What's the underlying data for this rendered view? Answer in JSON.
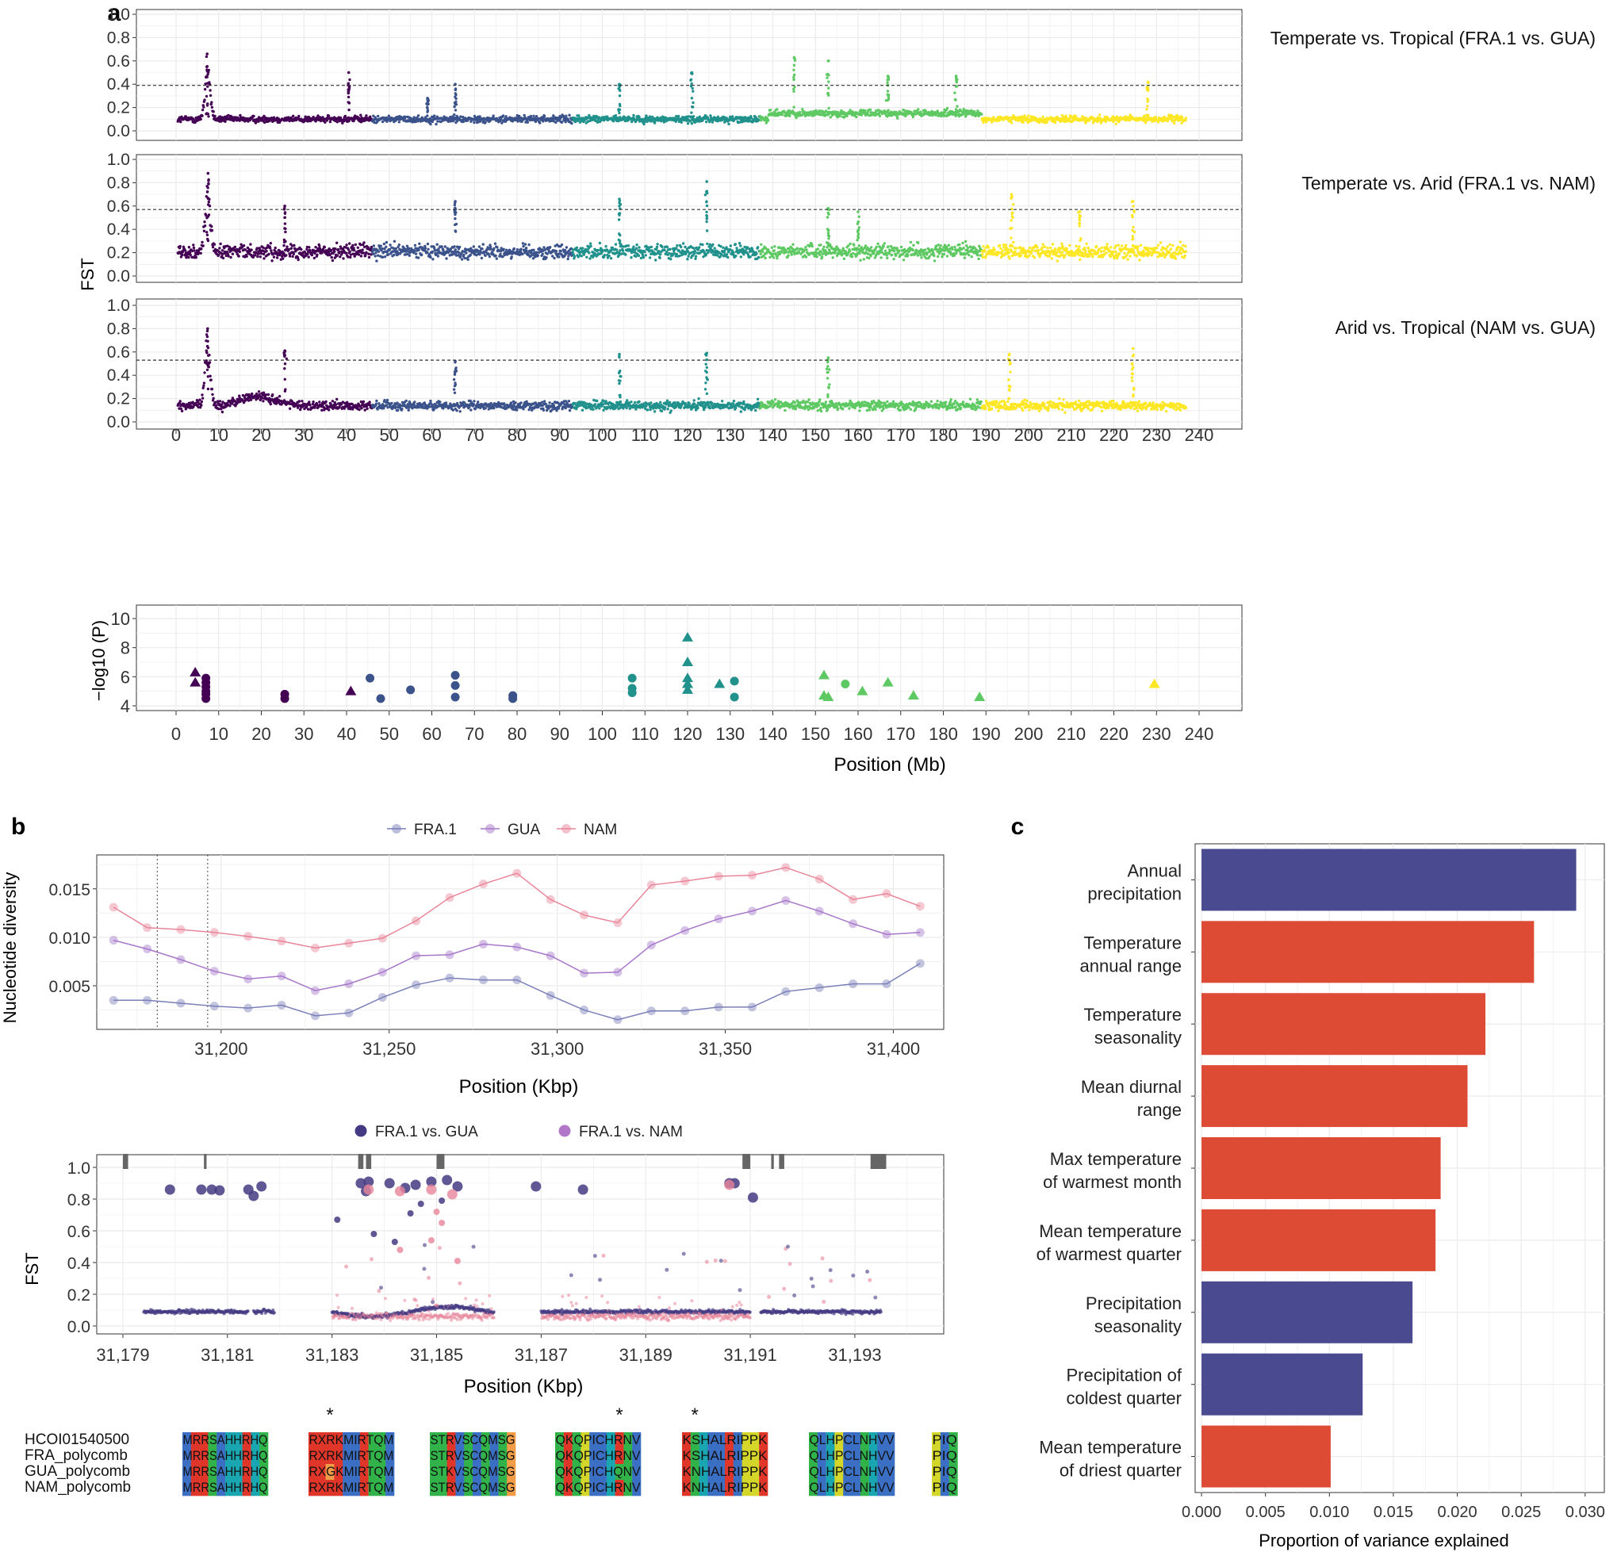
{
  "panels": {
    "a": "a",
    "b": "b",
    "c": "c"
  },
  "colors": {
    "chr": [
      "#440154",
      "#3b528b",
      "#21918c",
      "#5ec962",
      "#fde725"
    ],
    "fra": "#7a7fb8",
    "gua": "#a777c9",
    "nam": "#e8869a",
    "fra_vs_gua": "#443a83",
    "fra_vs_nam": "#b276c9",
    "bar_blue": "#4a4a90",
    "bar_red": "#de4b35",
    "grid": "#ebebeb",
    "gene": "#666666"
  },
  "chart_data": [
    {
      "id": "a_fst",
      "type": "scatter",
      "ylabel": "FST",
      "xlabel": "Position (Mb)",
      "xlim": [
        0,
        240
      ],
      "ylim": [
        0,
        1
      ],
      "xticks": [
        "0",
        "10",
        "20",
        "30",
        "40",
        "50",
        "60",
        "70",
        "80",
        "90",
        "100",
        "110",
        "120",
        "130",
        "140",
        "150",
        "160",
        "170",
        "180",
        "190",
        "200",
        "210",
        "220",
        "230",
        "240"
      ],
      "yticks": [
        "0.0",
        "0.2",
        "0.4",
        "0.6",
        "0.8",
        "1.0"
      ],
      "chromosome_ranges_mb": [
        [
          0,
          46
        ],
        [
          46,
          93
        ],
        [
          93,
          137
        ],
        [
          137,
          189
        ],
        [
          189,
          237
        ]
      ],
      "series": [
        {
          "name": "Temperate vs. Tropical (FRA.1 vs. GUA)",
          "baseline": 0.1,
          "threshold": 0.39,
          "peaks": [
            [
              7.3,
              0.66
            ],
            [
              40.5,
              0.5
            ],
            [
              59,
              0.28
            ],
            [
              65.5,
              0.4
            ],
            [
              104,
              0.4
            ],
            [
              121,
              0.5
            ],
            [
              145,
              0.63
            ],
            [
              153,
              0.6
            ],
            [
              167,
              0.47
            ],
            [
              183,
              0.47
            ],
            [
              228,
              0.42
            ]
          ]
        },
        {
          "name": "Temperate vs. Arid (FRA.1 vs. NAM)",
          "baseline": 0.21,
          "threshold": 0.57,
          "peaks": [
            [
              7.5,
              0.88
            ],
            [
              25.5,
              0.6
            ],
            [
              65.5,
              0.64
            ],
            [
              104,
              0.66
            ],
            [
              124.5,
              0.81
            ],
            [
              153,
              0.58
            ],
            [
              160,
              0.55
            ],
            [
              196,
              0.7
            ],
            [
              212,
              0.55
            ],
            [
              224.5,
              0.64
            ]
          ]
        },
        {
          "name": "Arid vs. Tropical (NAM vs. GUA)",
          "baseline": 0.14,
          "threshold": 0.53,
          "peaks": [
            [
              7.4,
              0.8
            ],
            [
              25.5,
              0.61
            ],
            [
              65.5,
              0.52
            ],
            [
              104,
              0.58
            ],
            [
              124.5,
              0.59
            ],
            [
              153,
              0.55
            ],
            [
              195.5,
              0.58
            ],
            [
              224.5,
              0.63
            ]
          ]
        }
      ]
    },
    {
      "id": "a_pval",
      "type": "scatter",
      "ylabel": "−log10 (P)",
      "xlabel": "Position (Mb)",
      "xlim": [
        0,
        240
      ],
      "ylim": [
        4,
        10
      ],
      "yticks": [
        "4",
        "6",
        "8",
        "10"
      ],
      "points": [
        {
          "x": 4.5,
          "y": 6.3,
          "shape": "triangle",
          "chr": 0
        },
        {
          "x": 4.5,
          "y": 5.6,
          "shape": "triangle",
          "chr": 0
        },
        {
          "x": 7,
          "y": 5.9,
          "shape": "circle",
          "chr": 0
        },
        {
          "x": 7,
          "y": 5.6,
          "shape": "circle",
          "chr": 0
        },
        {
          "x": 7,
          "y": 5.3,
          "shape": "circle",
          "chr": 0
        },
        {
          "x": 7,
          "y": 5.0,
          "shape": "circle",
          "chr": 0
        },
        {
          "x": 7,
          "y": 4.8,
          "shape": "circle",
          "chr": 0
        },
        {
          "x": 7,
          "y": 4.5,
          "shape": "circle",
          "chr": 0
        },
        {
          "x": 25.5,
          "y": 4.8,
          "shape": "circle",
          "chr": 0
        },
        {
          "x": 25.5,
          "y": 4.5,
          "shape": "circle",
          "chr": 0
        },
        {
          "x": 41,
          "y": 5.0,
          "shape": "triangle",
          "chr": 0
        },
        {
          "x": 45.5,
          "y": 5.9,
          "shape": "circle",
          "chr": 1
        },
        {
          "x": 48,
          "y": 4.5,
          "shape": "circle",
          "chr": 1
        },
        {
          "x": 55,
          "y": 5.1,
          "shape": "circle",
          "chr": 1
        },
        {
          "x": 65.5,
          "y": 6.1,
          "shape": "circle",
          "chr": 1
        },
        {
          "x": 65.5,
          "y": 5.4,
          "shape": "circle",
          "chr": 1
        },
        {
          "x": 65.5,
          "y": 4.6,
          "shape": "circle",
          "chr": 1
        },
        {
          "x": 79,
          "y": 4.7,
          "shape": "circle",
          "chr": 1
        },
        {
          "x": 79,
          "y": 4.5,
          "shape": "circle",
          "chr": 1
        },
        {
          "x": 107,
          "y": 5.9,
          "shape": "circle",
          "chr": 2
        },
        {
          "x": 107,
          "y": 5.2,
          "shape": "circle",
          "chr": 2
        },
        {
          "x": 107,
          "y": 4.9,
          "shape": "circle",
          "chr": 2
        },
        {
          "x": 120,
          "y": 8.7,
          "shape": "triangle",
          "chr": 2
        },
        {
          "x": 120,
          "y": 7.0,
          "shape": "triangle",
          "chr": 2
        },
        {
          "x": 120,
          "y": 5.9,
          "shape": "triangle",
          "chr": 2
        },
        {
          "x": 120,
          "y": 5.5,
          "shape": "triangle",
          "chr": 2
        },
        {
          "x": 120,
          "y": 5.1,
          "shape": "triangle",
          "chr": 2
        },
        {
          "x": 127.5,
          "y": 5.5,
          "shape": "triangle",
          "chr": 2
        },
        {
          "x": 131,
          "y": 5.7,
          "shape": "circle",
          "chr": 2
        },
        {
          "x": 131,
          "y": 4.6,
          "shape": "circle",
          "chr": 2
        },
        {
          "x": 152,
          "y": 6.1,
          "shape": "triangle",
          "chr": 3
        },
        {
          "x": 152,
          "y": 4.7,
          "shape": "triangle",
          "chr": 3
        },
        {
          "x": 153,
          "y": 4.6,
          "shape": "triangle",
          "chr": 3
        },
        {
          "x": 157,
          "y": 5.5,
          "shape": "circle",
          "chr": 3
        },
        {
          "x": 161,
          "y": 5.0,
          "shape": "triangle",
          "chr": 3
        },
        {
          "x": 167,
          "y": 5.6,
          "shape": "triangle",
          "chr": 3
        },
        {
          "x": 173,
          "y": 4.7,
          "shape": "triangle",
          "chr": 3
        },
        {
          "x": 188.5,
          "y": 4.6,
          "shape": "triangle",
          "chr": 3
        },
        {
          "x": 229.5,
          "y": 5.5,
          "shape": "triangle",
          "chr": 4
        }
      ]
    },
    {
      "id": "b_diversity",
      "type": "line",
      "ylabel": "Nucleotide diversity",
      "xlabel": "Position (Kbp)",
      "xlim": [
        31163,
        31415
      ],
      "ylim": [
        0.0005,
        0.0185
      ],
      "xticks": [
        31200,
        31250,
        31300,
        31350,
        31400
      ],
      "xtick_labels": [
        "31,200",
        "31,250",
        "31,300",
        "31,350",
        "31,400"
      ],
      "yticks": [
        0.005,
        0.01,
        0.015
      ],
      "ytick_labels": [
        "0.005",
        "0.010",
        "0.015"
      ],
      "vlines": [
        31181,
        31196
      ],
      "x": [
        31168,
        31178,
        31188,
        31198,
        31208,
        31218,
        31228,
        31238,
        31248,
        31258,
        31268,
        31278,
        31288,
        31298,
        31308,
        31318,
        31328,
        31338,
        31348,
        31358,
        31368,
        31378,
        31388,
        31398,
        31408
      ],
      "series": [
        {
          "name": "FRA.1",
          "values": [
            0.0035,
            0.0035,
            0.0032,
            0.0029,
            0.0027,
            0.003,
            0.0019,
            0.0022,
            0.0038,
            0.0051,
            0.0058,
            0.0056,
            0.0056,
            0.004,
            0.0025,
            0.0015,
            0.0024,
            0.0024,
            0.0028,
            0.0028,
            0.0044,
            0.0048,
            0.0052,
            0.0052,
            0.0073
          ]
        },
        {
          "name": "GUA",
          "values": [
            0.0097,
            0.0088,
            0.0077,
            0.0065,
            0.0057,
            0.006,
            0.0045,
            0.0052,
            0.0064,
            0.0081,
            0.0082,
            0.0093,
            0.009,
            0.0081,
            0.0063,
            0.0064,
            0.0092,
            0.0107,
            0.0119,
            0.0127,
            0.0138,
            0.0127,
            0.0114,
            0.0103,
            0.0105
          ]
        },
        {
          "name": "NAM",
          "values": [
            0.0131,
            0.011,
            0.0108,
            0.0105,
            0.0101,
            0.0096,
            0.0089,
            0.0094,
            0.0099,
            0.0117,
            0.0141,
            0.0155,
            0.0166,
            0.0139,
            0.0123,
            0.0115,
            0.0154,
            0.0158,
            0.0163,
            0.0164,
            0.0172,
            0.016,
            0.0139,
            0.0145,
            0.0132
          ]
        }
      ]
    },
    {
      "id": "b_fst",
      "type": "scatter",
      "ylabel": "FST",
      "xlabel": "Position (Kbp)",
      "xlim": [
        31178.5,
        31194.7
      ],
      "ylim": [
        -0.05,
        1.08
      ],
      "xticks": [
        31179,
        31181,
        31183,
        31185,
        31187,
        31189,
        31191,
        31193
      ],
      "xtick_labels": [
        "31,179",
        "31,181",
        "31,183",
        "31,185",
        "31,187",
        "31,189",
        "31,191",
        "31,193"
      ],
      "yticks": [
        0.0,
        0.2,
        0.4,
        0.6,
        0.8,
        1.0
      ],
      "ytick_labels": [
        "0.0",
        "0.2",
        "0.4",
        "0.6",
        "0.8",
        "1.0"
      ],
      "legend": [
        "FRA.1 vs. GUA",
        "FRA.1 vs. NAM"
      ],
      "gene_blocks_kbp": [
        [
          31179.0,
          31179.1
        ],
        [
          31180.55,
          31180.6
        ],
        [
          31183.5,
          31183.6
        ],
        [
          31183.65,
          31183.75
        ],
        [
          31185.0,
          31185.15
        ],
        [
          31190.85,
          31191.0
        ],
        [
          31191.4,
          31191.45
        ],
        [
          31191.55,
          31191.65
        ],
        [
          31193.3,
          31193.6
        ]
      ],
      "data_segments_kbp": [
        [
          31179.4,
          31180.6
        ],
        [
          31180.6,
          31181.4
        ],
        [
          31181.5,
          31181.9
        ],
        [
          31183.0,
          31186.1
        ],
        [
          31187.0,
          31188.9
        ],
        [
          31188.9,
          31190.3
        ],
        [
          31190.3,
          31191.0
        ],
        [
          31191.2,
          31192.0
        ],
        [
          31192.0,
          31193.5
        ]
      ],
      "high_points": [
        {
          "x": 31179.9,
          "y": 0.86,
          "s": "gua"
        },
        {
          "x": 31180.5,
          "y": 0.86,
          "s": "gua"
        },
        {
          "x": 31180.7,
          "y": 0.86,
          "s": "gua"
        },
        {
          "x": 31180.85,
          "y": 0.855,
          "s": "gua"
        },
        {
          "x": 31181.4,
          "y": 0.86,
          "s": "gua"
        },
        {
          "x": 31181.5,
          "y": 0.82,
          "s": "gua"
        },
        {
          "x": 31181.65,
          "y": 0.88,
          "s": "gua"
        },
        {
          "x": 31183.1,
          "y": 0.67,
          "s": "gua"
        },
        {
          "x": 31183.55,
          "y": 0.9,
          "s": "gua"
        },
        {
          "x": 31183.7,
          "y": 0.91,
          "s": "gua"
        },
        {
          "x": 31183.65,
          "y": 0.85,
          "s": "gua"
        },
        {
          "x": 31184.1,
          "y": 0.9,
          "s": "gua"
        },
        {
          "x": 31184.4,
          "y": 0.87,
          "s": "gua"
        },
        {
          "x": 31184.6,
          "y": 0.89,
          "s": "gua"
        },
        {
          "x": 31184.9,
          "y": 0.91,
          "s": "gua"
        },
        {
          "x": 31185.2,
          "y": 0.92,
          "s": "gua"
        },
        {
          "x": 31185.4,
          "y": 0.88,
          "s": "gua"
        },
        {
          "x": 31184.7,
          "y": 0.77,
          "s": "gua"
        },
        {
          "x": 31184.5,
          "y": 0.71,
          "s": "gua"
        },
        {
          "x": 31183.8,
          "y": 0.58,
          "s": "gua"
        },
        {
          "x": 31184.2,
          "y": 0.53,
          "s": "gua"
        },
        {
          "x": 31185.1,
          "y": 0.79,
          "s": "gua"
        },
        {
          "x": 31186.9,
          "y": 0.88,
          "s": "gua"
        },
        {
          "x": 31187.8,
          "y": 0.86,
          "s": "gua"
        },
        {
          "x": 31190.6,
          "y": 0.9,
          "s": "gua"
        },
        {
          "x": 31190.7,
          "y": 0.9,
          "s": "gua"
        },
        {
          "x": 31191.05,
          "y": 0.81,
          "s": "gua"
        },
        {
          "x": 31183.7,
          "y": 0.86,
          "s": "nam"
        },
        {
          "x": 31184.3,
          "y": 0.85,
          "s": "nam"
        },
        {
          "x": 31184.9,
          "y": 0.86,
          "s": "nam"
        },
        {
          "x": 31185.3,
          "y": 0.83,
          "s": "nam"
        },
        {
          "x": 31185.1,
          "y": 0.65,
          "s": "nam"
        },
        {
          "x": 31184.3,
          "y": 0.48,
          "s": "nam"
        },
        {
          "x": 31184.9,
          "y": 0.54,
          "s": "nam"
        },
        {
          "x": 31185.4,
          "y": 0.41,
          "s": "nam"
        },
        {
          "x": 31190.6,
          "y": 0.89,
          "s": "nam"
        },
        {
          "x": 31185.0,
          "y": 0.72,
          "s": "nam"
        }
      ]
    },
    {
      "id": "c_bars",
      "type": "bar",
      "orientation": "horizontal",
      "xlabel": "Proportion of variance explained",
      "xlim": [
        -0.0005,
        0.0315
      ],
      "xticks": [
        0,
        0.005,
        0.01,
        0.015,
        0.02,
        0.025,
        0.03
      ],
      "xtick_labels": [
        "0.000",
        "0.005",
        "0.010",
        "0.015",
        "0.020",
        "0.025",
        "0.030"
      ],
      "categories": [
        [
          "Annual",
          "precipitation"
        ],
        [
          "Temperature",
          "annual range"
        ],
        [
          "Temperature",
          "seasonality"
        ],
        [
          "Mean diurnal",
          "range"
        ],
        [
          "Max temperature",
          "of warmest month"
        ],
        [
          "Mean temperature",
          "of warmest quarter"
        ],
        [
          "Precipitation",
          "seasonality"
        ],
        [
          "Precipitation of",
          "coldest quarter"
        ],
        [
          "Mean temperature",
          "of driest quarter"
        ]
      ],
      "values": [
        0.0293,
        0.026,
        0.0222,
        0.0208,
        0.0187,
        0.0183,
        0.0165,
        0.0126,
        0.0101
      ],
      "groups": [
        "precipitation",
        "temperature",
        "temperature",
        "temperature",
        "temperature",
        "temperature",
        "precipitation",
        "precipitation",
        "temperature"
      ]
    }
  ],
  "alignment": {
    "stars": [
      "*",
      "*",
      "*"
    ],
    "rows": [
      {
        "name": "HCOI01540500",
        "blocks": [
          "MRRSAHHRHQ",
          "RXRKMIRTQM",
          "STRVSCQMSG",
          "QKQPICHRNV",
          "KSHALRIPPK",
          "QLHPCLNHVV",
          "PIQ"
        ]
      },
      {
        "name": "FRA_polycomb",
        "blocks": [
          "MRRSAHHRHQ",
          "RXRKMIRTQM",
          "STRVSCQMSG",
          "QKQPICHRNV",
          "KSHALRIPPK",
          "QLHPCLNHVV",
          "PIQ"
        ]
      },
      {
        "name": "GUA_polycomb",
        "blocks": [
          "MRRSAHHRHQ",
          "RXGKMIRTQM",
          "STKVSCQMSG",
          "QKQPICHQNV",
          "KNHALRIPPK",
          "QLHPCLNHVV",
          "PIQ"
        ]
      },
      {
        "name": "NAM_polycomb",
        "blocks": [
          "MRRSAHHRHQ",
          "RXRKMIRTQM",
          "STRVSCQMSG",
          "QKQPICHRNV",
          "KNHALRIPPK",
          "QLHPCLNHVV",
          "PIQ"
        ]
      }
    ],
    "aa_colors": {
      "M": "#3b6fc4",
      "R": "#e0362a",
      "S": "#32b34a",
      "A": "#3b6fc4",
      "H": "#1aa6b0",
      "Q": "#32b34a",
      "X": "#e0362a",
      "K": "#e0362a",
      "I": "#3b6fc4",
      "T": "#32b34a",
      "V": "#3b6fc4",
      "C": "#3b6fc4",
      "G": "#f29c48",
      "P": "#d4d62a",
      "N": "#32b34a",
      "L": "#3b6fc4"
    }
  }
}
